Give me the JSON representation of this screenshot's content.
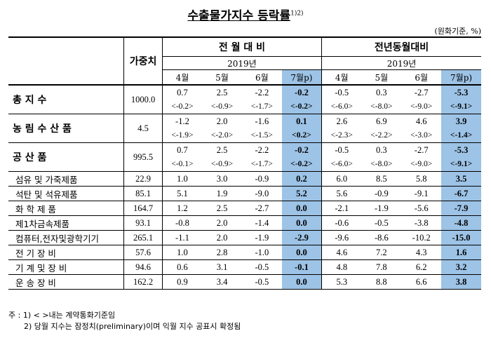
{
  "title": "수출물가지수 등락률",
  "title_note": "1)2)",
  "unit": "(원화기준, %)",
  "header": {
    "weight": "가중치",
    "group_mom": "전 월 대 비",
    "group_yoy": "전년동월대비",
    "year": "2019년",
    "months": [
      "4월",
      "5월",
      "6월",
      "7월p)"
    ]
  },
  "groups": [
    {
      "name": "총 지 수",
      "weight": "1000.0",
      "mom": [
        "0.7",
        "2.5",
        "-2.2",
        "-0.2"
      ],
      "mom_b": [
        "<-0.2>",
        "<-0.9>",
        "<-1.7>",
        "<-0.2>"
      ],
      "yoy": [
        "-0.5",
        "0.3",
        "-2.7",
        "-5.3"
      ],
      "yoy_b": [
        "<-6.0>",
        "<-8.0>",
        "<-9.0>",
        "<-9.1>"
      ]
    },
    {
      "name": "농 림 수 산 품",
      "weight": "4.5",
      "mom": [
        "-1.2",
        "2.0",
        "-1.6",
        "0.1"
      ],
      "mom_b": [
        "<-1.9>",
        "<-2.0>",
        "<-1.5>",
        "<0.2>"
      ],
      "yoy": [
        "2.6",
        "6.9",
        "4.6",
        "3.9"
      ],
      "yoy_b": [
        "<-2.3>",
        "<-2.2>",
        "<-3.0>",
        "<-1.4>"
      ]
    },
    {
      "name": "공 산 품",
      "weight": "995.5",
      "mom": [
        "0.7",
        "2.5",
        "-2.2",
        "-0.2"
      ],
      "mom_b": [
        "<-0.1>",
        "<-0.9>",
        "<-1.7>",
        "<-0.2>"
      ],
      "yoy": [
        "-0.5",
        "0.3",
        "-2.7",
        "-5.3"
      ],
      "yoy_b": [
        "<-6.0>",
        "<-8.0>",
        "<-9.0>",
        "<-9.1>"
      ]
    }
  ],
  "subs": [
    {
      "name": "섬유 및 가죽제품",
      "weight": "22.9",
      "mom": [
        "1.0",
        "3.0",
        "-0.9",
        "0.2"
      ],
      "yoy": [
        "6.0",
        "8.5",
        "5.8",
        "3.5"
      ]
    },
    {
      "name": "석탄 및 석유제품",
      "weight": "85.1",
      "mom": [
        "5.1",
        "1.9",
        "-9.0",
        "5.2"
      ],
      "yoy": [
        "5.6",
        "-0.9",
        "-9.1",
        "-6.7"
      ]
    },
    {
      "name": "화 학 제 품",
      "weight": "164.7",
      "mom": [
        "1.2",
        "2.5",
        "-2.7",
        "0.0"
      ],
      "yoy": [
        "-2.1",
        "-1.9",
        "-5.6",
        "-7.9"
      ]
    },
    {
      "name": "제1차금속제품",
      "weight": "93.1",
      "mom": [
        "-0.8",
        "2.0",
        "-1.4",
        "0.0"
      ],
      "yoy": [
        "-0.6",
        "-0.5",
        "-3.8",
        "-4.8"
      ]
    },
    {
      "name": "컴퓨터,전자및광학기기",
      "weight": "265.1",
      "mom": [
        "-1.1",
        "2.0",
        "-1.9",
        "-2.9"
      ],
      "yoy": [
        "-9.6",
        "-8.6",
        "-10.2",
        "-15.0"
      ]
    },
    {
      "name": "전 기 장 비",
      "weight": "57.6",
      "mom": [
        "1.0",
        "2.8",
        "-1.0",
        "0.0"
      ],
      "yoy": [
        "4.6",
        "7.2",
        "4.3",
        "1.6"
      ]
    },
    {
      "name": "기 계 및 장 비",
      "weight": "94.6",
      "mom": [
        "0.6",
        "3.1",
        "-0.5",
        "-0.1"
      ],
      "yoy": [
        "4.8",
        "7.8",
        "6.2",
        "3.2"
      ]
    },
    {
      "name": "운 송 장 비",
      "weight": "162.2",
      "mom": [
        "0.9",
        "3.4",
        "-0.5",
        "0.0"
      ],
      "yoy": [
        "5.3",
        "8.8",
        "6.6",
        "3.8"
      ]
    }
  ],
  "notes": [
    "주 : 1) < >내는 계약통화기준임",
    "2) 당월 지수는 잠정치(preliminary)이며 익월 지수 공표시 확정됨"
  ]
}
